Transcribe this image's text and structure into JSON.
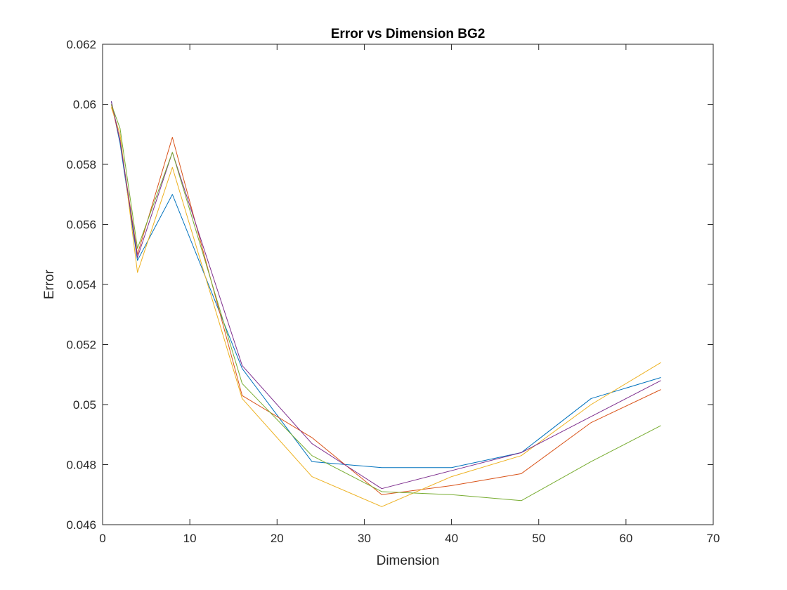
{
  "chart_data": {
    "type": "line",
    "title": "Error vs Dimension BG2",
    "xlabel": "Dimension",
    "ylabel": "Error",
    "xlim": [
      0,
      70
    ],
    "ylim": [
      0.046,
      0.062
    ],
    "xticks": [
      0,
      10,
      20,
      30,
      40,
      50,
      60,
      70
    ],
    "xtick_labels": [
      "0",
      "10",
      "20",
      "30",
      "40",
      "50",
      "60",
      "70"
    ],
    "yticks": [
      0.046,
      0.048,
      0.05,
      0.052,
      0.054,
      0.056,
      0.058,
      0.06,
      0.062
    ],
    "ytick_labels": [
      "0.046",
      "0.048",
      "0.05",
      "0.052",
      "0.054",
      "0.056",
      "0.058",
      "0.06",
      "0.062"
    ],
    "grid": false,
    "x": [
      1,
      2,
      4,
      8,
      16,
      24,
      32,
      40,
      48,
      56,
      64
    ],
    "series": [
      {
        "name": "Series 1",
        "color": "#0072BD",
        "values": [
          0.0601,
          0.0587,
          0.0548,
          0.057,
          0.0512,
          0.0481,
          0.0479,
          0.0479,
          0.0484,
          0.0502,
          0.0509
        ]
      },
      {
        "name": "Series 2",
        "color": "#D95319",
        "values": [
          0.06,
          0.0588,
          0.055,
          0.0589,
          0.0503,
          0.0489,
          0.047,
          0.0473,
          0.0477,
          0.0494,
          0.0505
        ]
      },
      {
        "name": "Series 3",
        "color": "#EDB120",
        "values": [
          0.0599,
          0.059,
          0.0544,
          0.0579,
          0.0502,
          0.0476,
          0.0466,
          0.0476,
          0.0483,
          0.05,
          0.0514
        ]
      },
      {
        "name": "Series 4",
        "color": "#7E2F8E",
        "values": [
          0.0601,
          0.0588,
          0.0549,
          0.0584,
          0.0513,
          0.0487,
          0.0472,
          0.0478,
          0.0484,
          0.0496,
          0.0508
        ]
      },
      {
        "name": "Series 5",
        "color": "#77AC30",
        "values": [
          0.06,
          0.0592,
          0.0552,
          0.0584,
          0.0507,
          0.0483,
          0.0471,
          0.047,
          0.0468,
          0.0481,
          0.0493
        ]
      }
    ]
  }
}
